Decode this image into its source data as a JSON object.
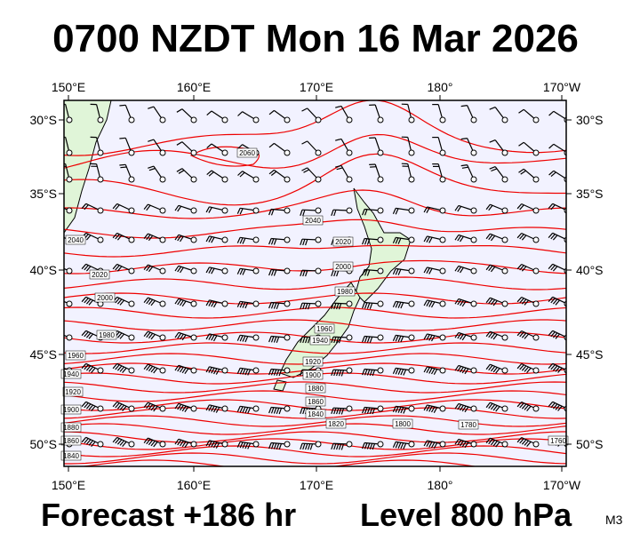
{
  "title": "0700 NZDT Mon 16 Mar 2026",
  "longitude_labels": [
    "150°E",
    "160°E",
    "170°E",
    "180°",
    "170°W"
  ],
  "latitude_labels": [
    "30°S",
    "35°S",
    "40°S",
    "45°S",
    "50°S"
  ],
  "contour_labels": [
    "2060",
    "2040",
    "2020",
    "2040",
    "2020",
    "2000",
    "2000",
    "1980",
    "1980",
    "1960",
    "1940",
    "1960",
    "1940",
    "1920",
    "1900",
    "1880",
    "1860",
    "1840",
    "1820",
    "1800",
    "1780",
    "1760",
    "1920",
    "1900",
    "1880",
    "1860",
    "1840"
  ],
  "footer": {
    "forecast": "Forecast +186 hr",
    "level": "Level 800 hPa",
    "model": "M3"
  }
}
